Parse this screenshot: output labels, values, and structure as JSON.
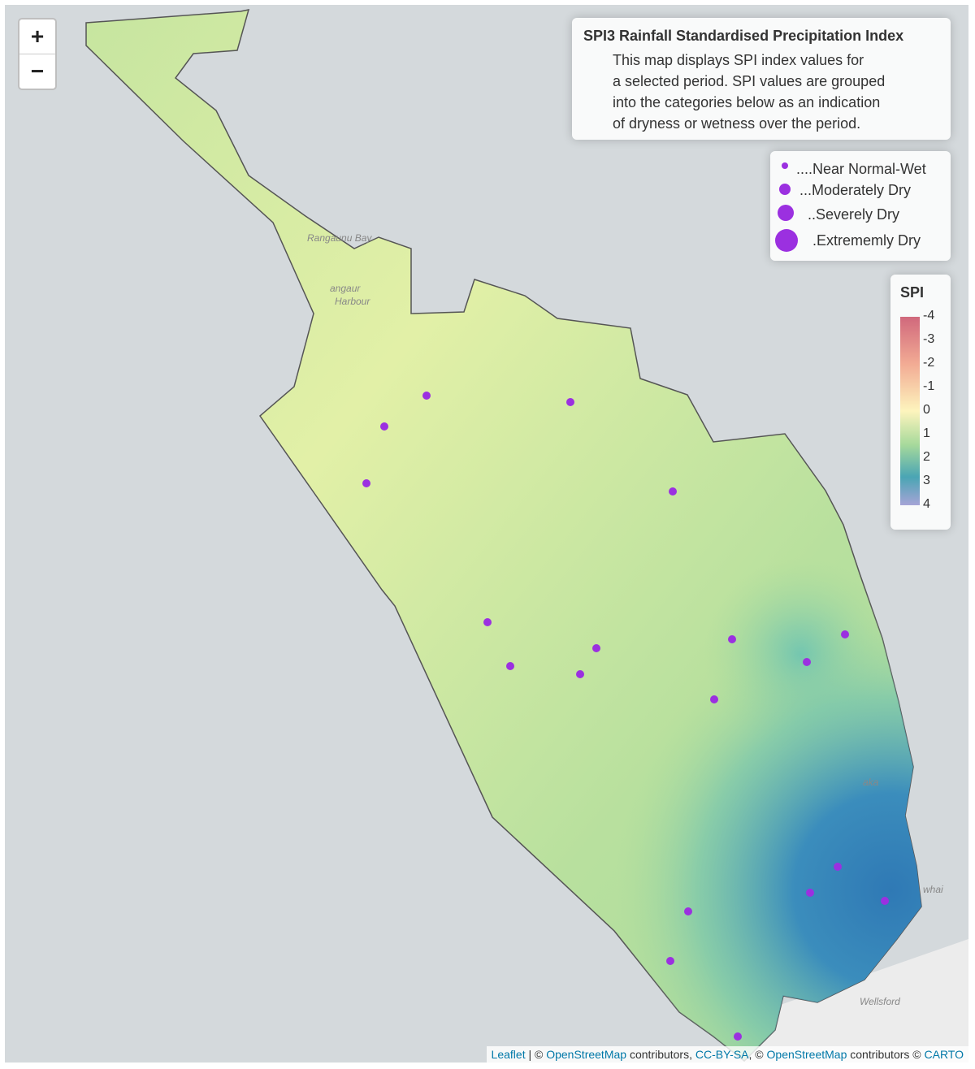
{
  "zoom_controls": {
    "zoom_in": "+",
    "zoom_out": "−"
  },
  "info": {
    "title": "SPI3 Rainfall Standardised Precipitation Index",
    "lines": [
      "This map displays SPI index values for",
      "a selected period. SPI values are grouped",
      "into the categories below as an indication",
      "of dryness or wetness over the period."
    ]
  },
  "size_legend": {
    "items": [
      "....Near Normal-Wet",
      "...Moderately Dry",
      "..Severely Dry",
      ".Extrememly Dry"
    ]
  },
  "color_legend": {
    "title": "SPI",
    "labels": [
      "-4",
      "-3",
      "-2",
      "-1",
      "0",
      "1",
      "2",
      "3",
      "4"
    ]
  },
  "place_labels": [
    "Rangaunu Bay",
    "angaur",
    "Harbour",
    "aka",
    "whai",
    "Wellsford"
  ],
  "attribution": {
    "parts": [
      "Leaflet",
      "| ©",
      "OpenStreetMap",
      "contributors,",
      "CC-BY-SA",
      ", ©",
      "OpenStreetMap",
      "contributors ©",
      "CARTO"
    ]
  }
}
